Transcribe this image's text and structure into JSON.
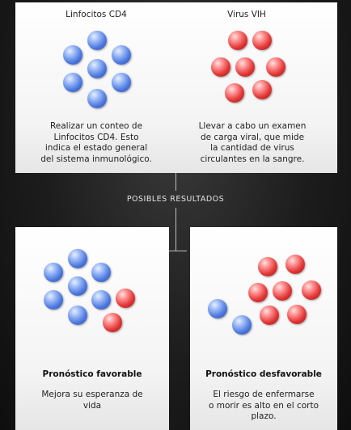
{
  "top": {
    "cd4": {
      "title": "Linfocitos CD4",
      "description_lines": [
        "Realizar un conteo de",
        "Linfocitos CD4. Esto",
        "indica el estado general",
        "del sistema inmunológico."
      ]
    },
    "vih": {
      "title": "Virus VIH",
      "description_lines": [
        "Llevar a cabo un examen",
        "de carga viral, que mide",
        "la cantidad de virus",
        "circulantes en la sangre."
      ]
    }
  },
  "results_label": "POSIBLES RESULTADOS",
  "favorable": {
    "title": "Pronóstico favorable",
    "description_lines": [
      "Mejora su esperanza de",
      "vida"
    ]
  },
  "unfavorable": {
    "title": "Pronóstico desfavorable",
    "description_lines": [
      "El riesgo de enfermarse",
      "o morir es alto en el corto",
      "plazo."
    ]
  },
  "colors": {
    "cd4_cell": "#4d78de",
    "virus_particle": "#e23838",
    "background": "#1c1c1c",
    "panel": "#f4f4f4"
  }
}
